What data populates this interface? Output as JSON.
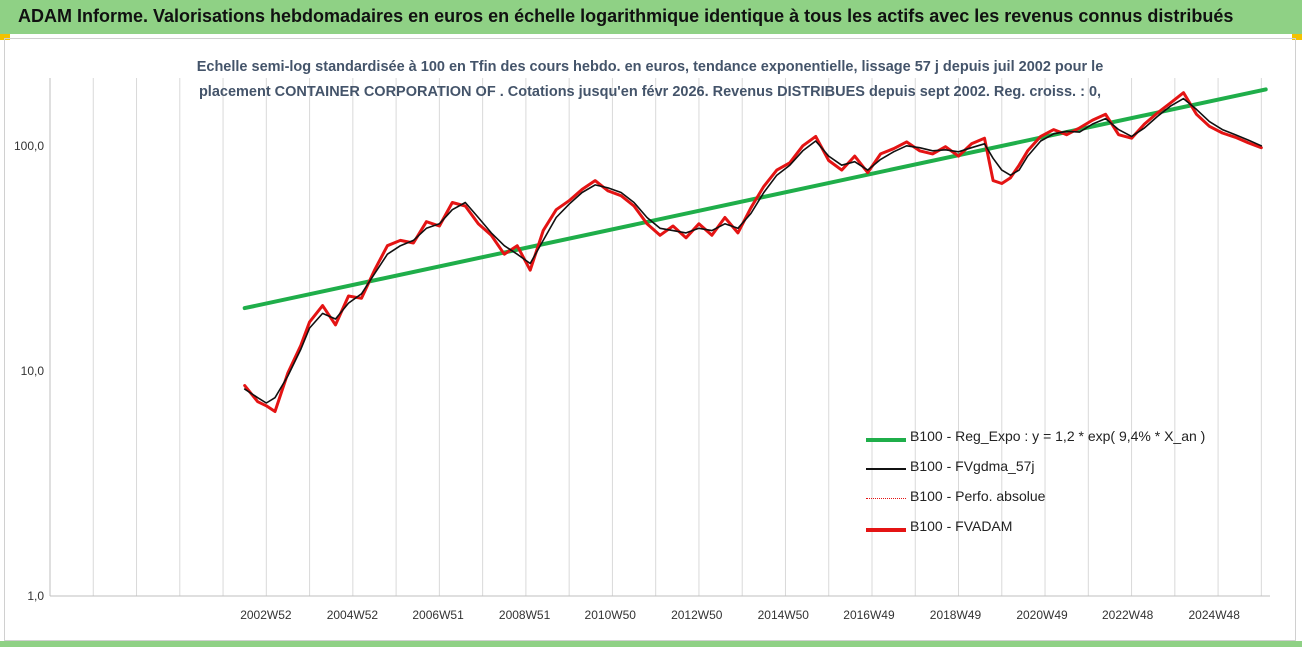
{
  "header": {
    "title": "ADAM Informe. Valorisations hebdomadaires en euros en échelle logarithmique identique à tous les actifs avec les revenus connus distribués"
  },
  "subtitle": {
    "line1": "Echelle semi-log standardisée à 100 en Tfin des cours hebdo. en euros, tendance exponentielle, lissage 57 j depuis juil 2002 pour le",
    "line2": "placement CONTAINER CORPORATION OF . Cotations jusqu'en févr 2026. Revenus DISTRIBUES depuis sept 2002. Reg. croiss. : 0,"
  },
  "legend": {
    "reg": "B100 - Reg_Expo : y = 1,2 * exp( 9,4% *  X_an )",
    "fvg": "B100 - FVgdma_57j",
    "perf": "B100 - Perfo. absolue",
    "fvadam": "B100 - FVADAM"
  },
  "colors": {
    "header_bg": "#8fd185",
    "subtitle": "#44546a",
    "reg": "#1fae4a",
    "fvadam": "#e41414",
    "fvg": "#111111",
    "perf": "#e41414",
    "grid": "#d9d9d9"
  },
  "chart_data": {
    "type": "line",
    "y_scale": "log",
    "ylim": [
      1,
      200
    ],
    "xlim": [
      1998.0,
      2026.2
    ],
    "y_ticks": [
      1,
      10,
      100
    ],
    "y_tick_labels": [
      "1,0",
      "10,0",
      "100,0"
    ],
    "x_ticks": [
      2002.99,
      2004.99,
      2006.97,
      2008.97,
      2010.95,
      2012.95,
      2014.95,
      2016.93,
      2018.93,
      2020.93,
      2022.91,
      2024.91
    ],
    "x_tick_labels": [
      "2002W52",
      "2004W52",
      "2006W51",
      "2008W51",
      "2010W50",
      "2012W50",
      "2014W50",
      "2016W49",
      "2018W49",
      "2020W49",
      "2022W48",
      "2024W48"
    ],
    "grid": true,
    "legend_position": "bottom-right",
    "series": [
      {
        "name": "B100 - Reg_Expo : y = 1,2 * exp( 9,4% *  X_an )",
        "style": "trend",
        "x": [
          2002.5,
          2026.1
        ],
        "y": [
          19.0,
          178.0
        ]
      },
      {
        "name": "B100 - FVgdma_57j",
        "style": "smooth",
        "x": [
          2002.5,
          2002.8,
          2003.0,
          2003.2,
          2003.5,
          2003.8,
          2004.0,
          2004.3,
          2004.6,
          2004.9,
          2005.2,
          2005.5,
          2005.8,
          2006.1,
          2006.4,
          2006.7,
          2007.0,
          2007.3,
          2007.6,
          2007.9,
          2008.2,
          2008.5,
          2008.8,
          2009.1,
          2009.4,
          2009.7,
          2010.0,
          2010.3,
          2010.6,
          2010.9,
          2011.2,
          2011.5,
          2011.8,
          2012.1,
          2012.4,
          2012.7,
          2013.0,
          2013.3,
          2013.6,
          2013.9,
          2014.2,
          2014.5,
          2014.8,
          2015.1,
          2015.4,
          2015.7,
          2016.0,
          2016.3,
          2016.6,
          2016.9,
          2017.2,
          2017.5,
          2017.8,
          2018.1,
          2018.4,
          2018.7,
          2019.0,
          2019.3,
          2019.6,
          2019.8,
          2020.0,
          2020.2,
          2020.4,
          2020.6,
          2020.9,
          2021.2,
          2021.5,
          2021.8,
          2022.1,
          2022.4,
          2022.7,
          2023.0,
          2023.3,
          2023.6,
          2023.9,
          2024.2,
          2024.5,
          2024.8,
          2025.1,
          2025.4,
          2025.7,
          2026.0
        ],
        "y": [
          8.3,
          7.6,
          7.2,
          7.6,
          9.5,
          12.5,
          15.5,
          18.0,
          17.0,
          20.0,
          22.0,
          27.0,
          33.0,
          36.0,
          38.0,
          43.0,
          45.0,
          52.0,
          56.0,
          48.0,
          41.0,
          36.0,
          33.0,
          30.0,
          38.0,
          48.0,
          55.0,
          62.0,
          67.0,
          65.0,
          62.0,
          56.0,
          48.0,
          43.0,
          42.0,
          41.0,
          43.0,
          42.0,
          45.0,
          43.0,
          50.0,
          62.0,
          74.0,
          82.0,
          95.0,
          105.0,
          90.0,
          82.0,
          85.0,
          78.0,
          87.0,
          94.0,
          100.0,
          98.0,
          95.0,
          96.0,
          94.0,
          98.0,
          102.0,
          88.0,
          78.0,
          74.0,
          78.0,
          90.0,
          105.0,
          113.0,
          116.0,
          115.0,
          125.0,
          132.0,
          118.0,
          110.0,
          120.0,
          135.0,
          150.0,
          162.0,
          145.0,
          128.0,
          118.0,
          112.0,
          106.0,
          100.0
        ]
      },
      {
        "name": "B100 - Perfo. absolue",
        "style": "dotted",
        "x": [
          2002.5,
          2002.8,
          2003.0,
          2003.2,
          2003.5,
          2003.8,
          2004.0,
          2004.3,
          2004.6,
          2004.9,
          2005.2,
          2005.5,
          2005.8,
          2006.1,
          2006.4,
          2006.7,
          2007.0,
          2007.3,
          2007.6,
          2007.9,
          2008.2,
          2008.5,
          2008.8,
          2009.1,
          2009.4,
          2009.7,
          2010.0,
          2010.3,
          2010.6,
          2010.9,
          2011.2,
          2011.5,
          2011.8,
          2012.1,
          2012.4,
          2012.7,
          2013.0,
          2013.3,
          2013.6,
          2013.9,
          2014.2,
          2014.5,
          2014.8,
          2015.1,
          2015.4,
          2015.7,
          2016.0,
          2016.3,
          2016.6,
          2016.9,
          2017.2,
          2017.5,
          2017.8,
          2018.1,
          2018.4,
          2018.7,
          2019.0,
          2019.3,
          2019.6,
          2019.8,
          2020.0,
          2020.2,
          2020.4,
          2020.6,
          2020.9,
          2021.2,
          2021.5,
          2021.8,
          2022.1,
          2022.4,
          2022.7,
          2023.0,
          2023.3,
          2023.6,
          2023.9,
          2024.2,
          2024.5,
          2024.8,
          2025.1,
          2025.4,
          2025.7,
          2026.0
        ],
        "y": [
          8.6,
          7.3,
          7.0,
          6.6,
          9.8,
          13.0,
          16.5,
          19.5,
          16.0,
          21.5,
          21.0,
          28.0,
          36.0,
          38.0,
          37.0,
          46.0,
          44.0,
          56.0,
          54.0,
          45.0,
          40.0,
          33.0,
          36.0,
          28.0,
          42.0,
          52.0,
          57.0,
          64.0,
          70.0,
          63.0,
          60.0,
          54.0,
          45.0,
          40.0,
          44.0,
          39.0,
          45.0,
          40.0,
          48.0,
          41.0,
          53.0,
          66.0,
          78.0,
          84.0,
          100.0,
          110.0,
          86.0,
          78.0,
          90.0,
          76.0,
          92.0,
          97.0,
          104.0,
          95.0,
          92.0,
          99.0,
          90.0,
          102.0,
          108.0,
          70.0,
          68.0,
          72.0,
          82.0,
          95.0,
          110.0,
          118.0,
          112.0,
          120.0,
          130.0,
          138.0,
          112.0,
          108.0,
          125.0,
          140.0,
          155.0,
          172.0,
          138.0,
          122.0,
          114.0,
          109.0,
          103.0,
          98.0
        ]
      },
      {
        "name": "B100 - FVADAM",
        "style": "main",
        "x": [
          2002.5,
          2002.8,
          2003.0,
          2003.2,
          2003.5,
          2003.8,
          2004.0,
          2004.3,
          2004.6,
          2004.9,
          2005.2,
          2005.5,
          2005.8,
          2006.1,
          2006.4,
          2006.7,
          2007.0,
          2007.3,
          2007.6,
          2007.9,
          2008.2,
          2008.5,
          2008.8,
          2009.1,
          2009.4,
          2009.7,
          2010.0,
          2010.3,
          2010.6,
          2010.9,
          2011.2,
          2011.5,
          2011.8,
          2012.1,
          2012.4,
          2012.7,
          2013.0,
          2013.3,
          2013.6,
          2013.9,
          2014.2,
          2014.5,
          2014.8,
          2015.1,
          2015.4,
          2015.7,
          2016.0,
          2016.3,
          2016.6,
          2016.9,
          2017.2,
          2017.5,
          2017.8,
          2018.1,
          2018.4,
          2018.7,
          2019.0,
          2019.3,
          2019.6,
          2019.8,
          2020.0,
          2020.2,
          2020.4,
          2020.6,
          2020.9,
          2021.2,
          2021.5,
          2021.8,
          2022.1,
          2022.4,
          2022.7,
          2023.0,
          2023.3,
          2023.6,
          2023.9,
          2024.2,
          2024.5,
          2024.8,
          2025.1,
          2025.4,
          2025.7,
          2026.0
        ],
        "y": [
          8.6,
          7.3,
          7.0,
          6.6,
          9.8,
          13.0,
          16.5,
          19.5,
          16.0,
          21.5,
          21.0,
          28.0,
          36.0,
          38.0,
          37.0,
          46.0,
          44.0,
          56.0,
          54.0,
          45.0,
          40.0,
          33.0,
          36.0,
          28.0,
          42.0,
          52.0,
          57.0,
          64.0,
          70.0,
          63.0,
          60.0,
          54.0,
          45.0,
          40.0,
          44.0,
          39.0,
          45.0,
          40.0,
          48.0,
          41.0,
          53.0,
          66.0,
          78.0,
          84.0,
          100.0,
          110.0,
          86.0,
          78.0,
          90.0,
          76.0,
          92.0,
          97.0,
          104.0,
          95.0,
          92.0,
          99.0,
          90.0,
          102.0,
          108.0,
          70.0,
          68.0,
          72.0,
          82.0,
          95.0,
          110.0,
          118.0,
          112.0,
          120.0,
          130.0,
          138.0,
          112.0,
          108.0,
          125.0,
          140.0,
          155.0,
          172.0,
          138.0,
          122.0,
          114.0,
          109.0,
          103.0,
          98.0
        ]
      }
    ]
  }
}
